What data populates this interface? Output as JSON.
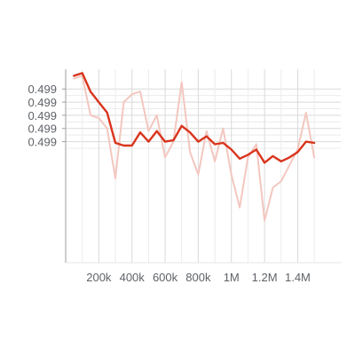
{
  "chart_data": {
    "type": "line",
    "title": "",
    "xlabel": "",
    "ylabel": "",
    "xlim": [
      0,
      1660000
    ],
    "ylim": [
      0.49818,
      0.49965
    ],
    "grid": true,
    "x_ticks": [
      {
        "value": 200000,
        "label": "200k"
      },
      {
        "value": 400000,
        "label": "400k"
      },
      {
        "value": 600000,
        "label": "600k"
      },
      {
        "value": 800000,
        "label": "800k"
      },
      {
        "value": 1000000,
        "label": "1M"
      },
      {
        "value": 1200000,
        "label": "1.2M"
      },
      {
        "value": 1400000,
        "label": "1.4M"
      }
    ],
    "y_ticks": [
      {
        "value": 0.4995,
        "label": "0.499"
      },
      {
        "value": 0.4994,
        "label": "0.499"
      },
      {
        "value": 0.4993,
        "label": "0.499"
      },
      {
        "value": 0.4992,
        "label": "0.499"
      },
      {
        "value": 0.4991,
        "label": "0.499"
      }
    ],
    "series": [
      {
        "role": "raw",
        "color": "#f3c7bf",
        "x": [
          50000,
          100000,
          150000,
          200000,
          250000,
          300000,
          350000,
          400000,
          450000,
          500000,
          550000,
          600000,
          650000,
          700000,
          750000,
          800000,
          850000,
          900000,
          950000,
          1000000,
          1050000,
          1100000,
          1150000,
          1200000,
          1250000,
          1300000,
          1350000,
          1400000,
          1450000,
          1500000
        ],
        "y": [
          0.49958,
          0.4996,
          0.4993,
          0.49928,
          0.4992,
          0.49882,
          0.4994,
          0.49946,
          0.49948,
          0.49918,
          0.4993,
          0.49898,
          0.4991,
          0.49955,
          0.49902,
          0.49885,
          0.49918,
          0.49895,
          0.4992,
          0.49885,
          0.4986,
          0.49898,
          0.49908,
          0.4985,
          0.49875,
          0.4988,
          0.49892,
          0.49904,
          0.49932,
          0.49898
        ]
      },
      {
        "role": "smoothed",
        "color": "#d9341c",
        "x": [
          50000,
          100000,
          150000,
          200000,
          250000,
          300000,
          350000,
          400000,
          450000,
          500000,
          550000,
          600000,
          650000,
          700000,
          750000,
          800000,
          850000,
          900000,
          950000,
          1000000,
          1050000,
          1100000,
          1150000,
          1200000,
          1250000,
          1300000,
          1350000,
          1400000,
          1450000,
          1500000
        ],
        "y": [
          0.4996,
          0.49962,
          0.49948,
          0.4994,
          0.49932,
          0.49909,
          0.49907,
          0.49907,
          0.49917,
          0.4991,
          0.49918,
          0.4991,
          0.49911,
          0.49922,
          0.49917,
          0.4991,
          0.49914,
          0.49908,
          0.49909,
          0.49904,
          0.49897,
          0.499,
          0.49904,
          0.49894,
          0.49899,
          0.49895,
          0.49898,
          0.49902,
          0.4991,
          0.49909
        ]
      }
    ]
  }
}
